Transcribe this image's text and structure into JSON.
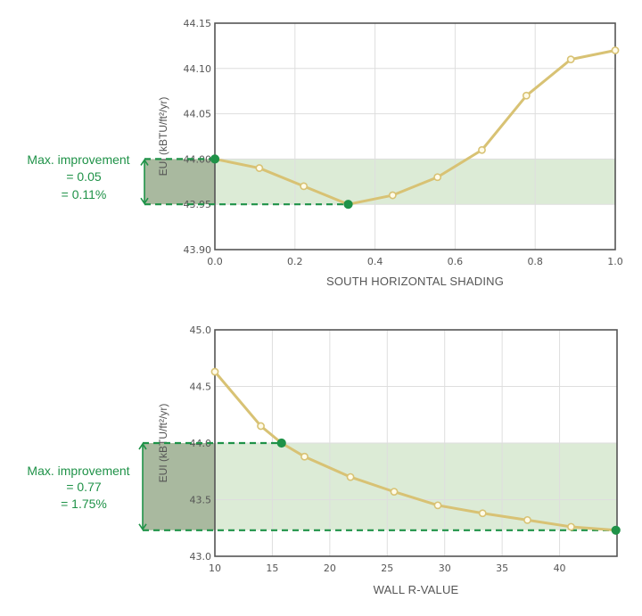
{
  "colors": {
    "line": "#d8c274",
    "point_fill": "#fffbe8",
    "highlight": "#1f9248",
    "band": "#dcebd6",
    "band_left": "#a9b99f",
    "grid": "#dedede",
    "frame": "#555555"
  },
  "chart_data": [
    {
      "type": "line",
      "title": "",
      "xlabel": "SOUTH HORIZONTAL SHADING",
      "ylabel": "EUI (kBTU/ft²/yr)",
      "xlim": [
        0,
        1.0
      ],
      "ylim": [
        43.9,
        44.15
      ],
      "x_ticks": [
        "0.0",
        "0.2",
        "0.4",
        "0.6",
        "0.8",
        "1.0"
      ],
      "y_ticks": [
        "43.90",
        "43.95",
        "44.00",
        "44.05",
        "44.10",
        "44.15"
      ],
      "grid": true,
      "series": [
        {
          "x": [
            0.0,
            0.111,
            0.222,
            0.333,
            0.444,
            0.556,
            0.667,
            0.778,
            0.889,
            1.0
          ],
          "values": [
            44.0,
            43.99,
            43.97,
            43.95,
            43.96,
            43.98,
            44.01,
            44.07,
            44.11,
            44.12
          ]
        }
      ],
      "highlight_points": [
        {
          "x": 0.0,
          "y": 44.0
        },
        {
          "x": 0.333,
          "y": 43.95
        }
      ],
      "band": [
        43.95,
        44.0
      ],
      "annotation": [
        "Max. improvement",
        "= 0.05",
        "= 0.11%"
      ]
    },
    {
      "type": "line",
      "title": "",
      "xlabel": "WALL R-VALUE",
      "ylabel": "EUI (kBTU/ft²/yr)",
      "xlim": [
        10,
        45
      ],
      "ylim": [
        43.0,
        45.0
      ],
      "x_ticks": [
        "10",
        "15",
        "20",
        "25",
        "30",
        "35",
        "40"
      ],
      "y_ticks": [
        "43.0",
        "43.5",
        "44.0",
        "44.5",
        "45.0"
      ],
      "grid": true,
      "series": [
        {
          "x": [
            10,
            14,
            15.8,
            17.8,
            21.8,
            25.6,
            29.4,
            33.3,
            37.2,
            41.0,
            44.9
          ],
          "values": [
            44.63,
            44.15,
            44.0,
            43.88,
            43.7,
            43.57,
            43.45,
            43.38,
            43.32,
            43.26,
            43.23
          ]
        }
      ],
      "highlight_points": [
        {
          "x": 15.8,
          "y": 44.0
        },
        {
          "x": 44.9,
          "y": 43.23
        }
      ],
      "band": [
        43.23,
        44.0
      ],
      "annotation": [
        "Max. improvement",
        "= 0.77",
        "= 1.75%"
      ]
    }
  ]
}
